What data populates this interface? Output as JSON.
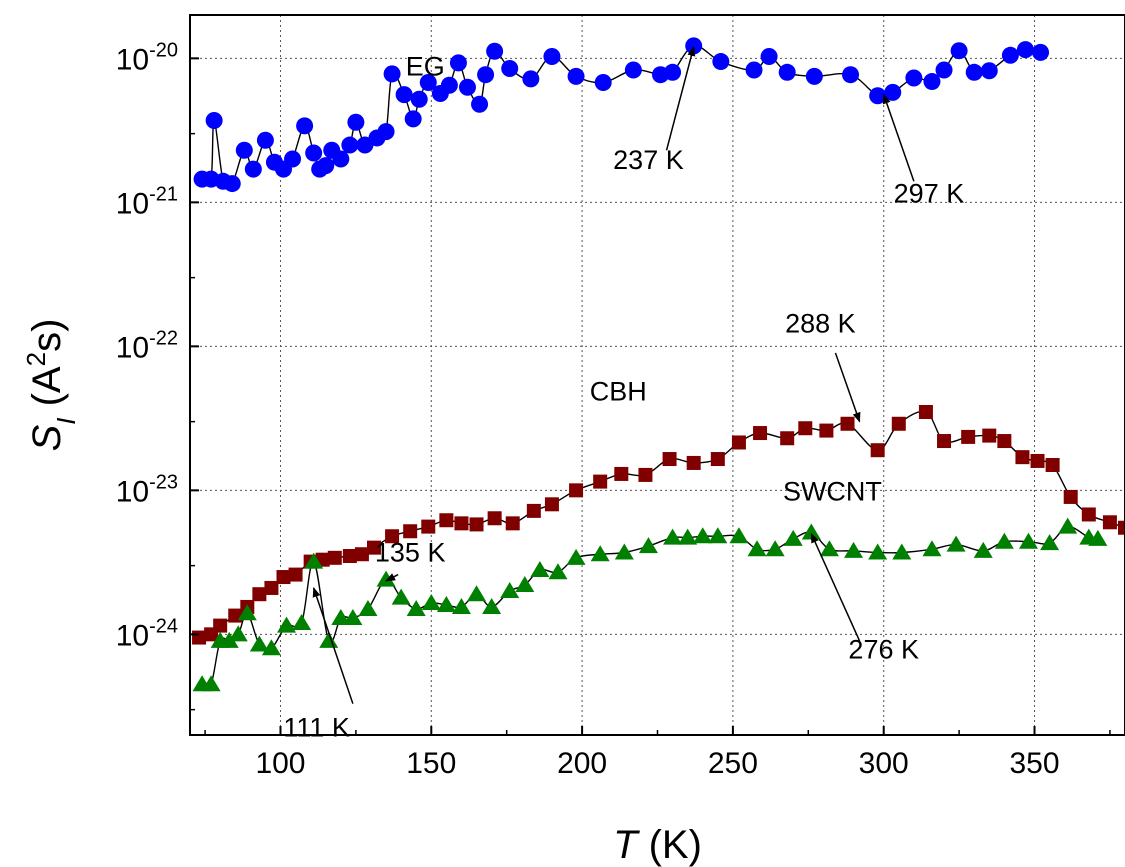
{
  "chart_data": {
    "type": "scatter",
    "y_scale": "log",
    "xlim": [
      70,
      380
    ],
    "ylim": [
      2e-25,
      2e-20
    ],
    "grid": true,
    "x_ticks": [
      100,
      150,
      200,
      250,
      300,
      350
    ],
    "y_ticks": [
      {
        "value": 1e-20,
        "base": "10",
        "exp": "-20"
      },
      {
        "value": 1e-21,
        "base": "10",
        "exp": "-21"
      },
      {
        "value": 1e-22,
        "base": "10",
        "exp": "-22"
      },
      {
        "value": 1e-23,
        "base": "10",
        "exp": "-23"
      },
      {
        "value": 1e-24,
        "base": "10",
        "exp": "-24"
      }
    ],
    "xlabel": {
      "symbol": "T",
      "unit": " (K)"
    },
    "ylabel": {
      "symbol": "S",
      "sub": "I",
      "unit_open": " (A",
      "unit_sup": "2",
      "unit_close": "s)"
    },
    "series": [
      {
        "name": "EG",
        "marker": "circle",
        "color": "#0000ff",
        "x": [
          74,
          77,
          78,
          81,
          84,
          88,
          91,
          95,
          98,
          101,
          104,
          108,
          111,
          113,
          115,
          117,
          120,
          123,
          125,
          128,
          132,
          135,
          137,
          141,
          144,
          146,
          149,
          153,
          156,
          159,
          162,
          166,
          168,
          171,
          176,
          183,
          190,
          198,
          207,
          217,
          226,
          230,
          237,
          246,
          257,
          262,
          268,
          277,
          289,
          298,
          303,
          310,
          316,
          320,
          325,
          330,
          335,
          342,
          347,
          352
        ],
        "y": [
          1.45e-21,
          1.45e-21,
          3.7e-21,
          1.4e-21,
          1.35e-21,
          2.3e-21,
          1.7e-21,
          2.7e-21,
          1.9e-21,
          1.7e-21,
          2e-21,
          3.4e-21,
          2.2e-21,
          1.7e-21,
          1.8e-21,
          2.3e-21,
          2e-21,
          2.5e-21,
          3.6e-21,
          2.5e-21,
          2.8e-21,
          3.1e-21,
          7.8e-21,
          5.6e-21,
          3.8e-21,
          5.2e-21,
          6.8e-21,
          5.7e-21,
          6.5e-21,
          9.3e-21,
          6.3e-21,
          4.8e-21,
          7.7e-21,
          1.12e-20,
          8.5e-21,
          7.2e-21,
          1.03e-20,
          7.5e-21,
          6.8e-21,
          8.3e-21,
          7.7e-21,
          8e-21,
          1.22e-20,
          9.5e-21,
          8.3e-21,
          1.03e-20,
          8e-21,
          7.5e-21,
          7.7e-21,
          5.5e-21,
          5.8e-21,
          7.3e-21,
          6.9e-21,
          8.3e-21,
          1.13e-20,
          8e-21,
          8.2e-21,
          1.05e-20,
          1.15e-20,
          1.1e-20
        ]
      },
      {
        "name": "CBH",
        "marker": "square",
        "color": "#800000",
        "x": [
          73,
          77,
          80,
          85,
          89,
          93,
          97,
          101,
          105,
          110,
          114,
          118,
          123,
          127,
          131,
          137,
          143,
          149,
          155,
          160,
          165,
          171,
          177,
          184,
          190,
          198,
          206,
          213,
          221,
          229,
          237,
          245,
          252,
          259,
          268,
          274,
          281,
          288,
          298,
          305,
          314,
          320,
          328,
          335,
          340,
          346,
          351,
          356,
          362,
          368,
          375,
          380
        ],
        "y": [
          9.5e-25,
          1e-24,
          1.15e-24,
          1.35e-24,
          1.55e-24,
          1.9e-24,
          2.1e-24,
          2.5e-24,
          2.6e-24,
          3.2e-24,
          3.3e-24,
          3.4e-24,
          3.5e-24,
          3.6e-24,
          4e-24,
          4.8e-24,
          5.2e-24,
          5.6e-24,
          6.2e-24,
          5.9e-24,
          5.8e-24,
          6.4e-24,
          5.9e-24,
          7.2e-24,
          8e-24,
          1e-23,
          1.15e-23,
          1.3e-23,
          1.28e-23,
          1.65e-23,
          1.55e-23,
          1.65e-23,
          2.15e-23,
          2.5e-23,
          2.3e-23,
          2.7e-23,
          2.6e-23,
          2.9e-23,
          1.9e-23,
          2.9e-23,
          3.5e-23,
          2.2e-23,
          2.35e-23,
          2.4e-23,
          2.2e-23,
          1.7e-23,
          1.6e-23,
          1.5e-23,
          9e-24,
          6.8e-24,
          6e-24,
          5.5e-24
        ]
      },
      {
        "name": "SWCNT",
        "marker": "triangle",
        "color": "#008000",
        "x": [
          74,
          77,
          80,
          83,
          86,
          89,
          93,
          97,
          102,
          107,
          111,
          116,
          120,
          124,
          129,
          135,
          140,
          145,
          150,
          155,
          160,
          165,
          170,
          176,
          181,
          186,
          192,
          198,
          206,
          214,
          222,
          230,
          235,
          240,
          245,
          252,
          258,
          264,
          270,
          276,
          282,
          290,
          298,
          306,
          316,
          324,
          333,
          340,
          348,
          355,
          361,
          368,
          371
        ],
        "y": [
          4.5e-25,
          4.5e-25,
          9e-25,
          9e-25,
          1e-24,
          1.4e-24,
          8.5e-25,
          8e-25,
          1.15e-24,
          1.2e-24,
          3.2e-24,
          9e-25,
          1.3e-24,
          1.3e-24,
          1.5e-24,
          2.4e-24,
          1.8e-24,
          1.5e-24,
          1.65e-24,
          1.6e-24,
          1.55e-24,
          1.9e-24,
          1.55e-24,
          2e-24,
          2.2e-24,
          2.8e-24,
          2.7e-24,
          3.4e-24,
          3.6e-24,
          3.7e-24,
          4.1e-24,
          4.7e-24,
          4.7e-24,
          4.8e-24,
          4.8e-24,
          4.8e-24,
          3.9e-24,
          3.9e-24,
          4.6e-24,
          5.1e-24,
          3.9e-24,
          3.8e-24,
          3.7e-24,
          3.7e-24,
          3.9e-24,
          4.2e-24,
          3.8e-24,
          4.4e-24,
          4.4e-24,
          4.3e-24,
          5.6e-24,
          4.7e-24,
          4.6e-24
        ]
      }
    ],
    "annotations": [
      {
        "text": "EG",
        "x": 148,
        "y": 7.6e-21,
        "arrow": null
      },
      {
        "text": "CBH",
        "x": 212,
        "y": 4.2e-23,
        "arrow": null
      },
      {
        "text": "SWCNT",
        "x": 283,
        "y": 8.5e-24,
        "arrow": null
      },
      {
        "text": "237 K",
        "x": 222,
        "y": 1.7e-21,
        "arrow": {
          "from": [
            228,
            2.3e-21
          ],
          "to": [
            237,
            1.2e-20
          ]
        }
      },
      {
        "text": "297 K",
        "x": 315,
        "y": 1e-21,
        "arrow": {
          "from": [
            310,
            1.4e-21
          ],
          "to": [
            300,
            5.6e-21
          ]
        }
      },
      {
        "text": "288 K",
        "x": 279,
        "y": 1.25e-22,
        "arrow": {
          "from": [
            284,
            9e-23
          ],
          "to": [
            292,
            3e-23
          ]
        }
      },
      {
        "text": "135 K",
        "x": 143,
        "y": 3.2e-24,
        "arrow": {
          "from": [
            139,
            2.6e-24
          ],
          "to": [
            135,
            2.35e-24
          ]
        }
      },
      {
        "text": "111 K",
        "x": 112,
        "y": 1.95e-25,
        "arrow": {
          "from": [
            124,
            3.3e-25
          ],
          "to": [
            111,
            2.1e-24
          ]
        }
      },
      {
        "text": "276 K",
        "x": 300,
        "y": 6.8e-25,
        "arrow": {
          "from": [
            292,
            9e-25
          ],
          "to": [
            276,
            5e-24
          ]
        }
      }
    ]
  }
}
